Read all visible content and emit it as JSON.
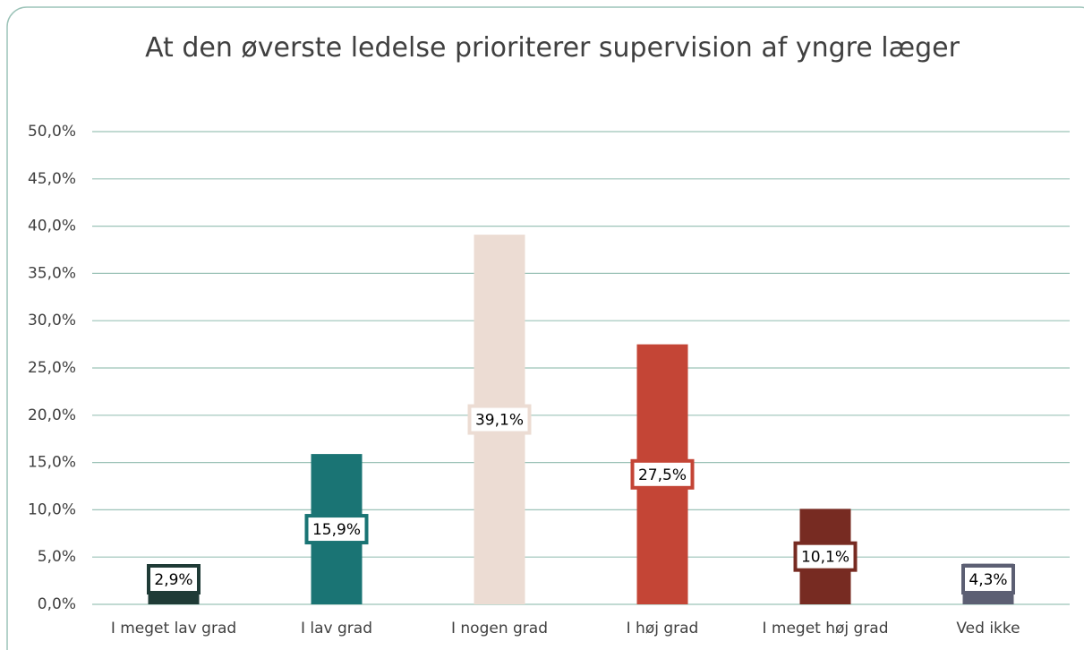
{
  "chart_data": {
    "type": "bar",
    "title": "At den øverste ledelse prioriterer supervision af yngre læger",
    "categories": [
      "I meget lav grad",
      "I lav grad",
      "I nogen grad",
      "I høj grad",
      "I meget høj grad",
      "Ved ikke"
    ],
    "values": [
      2.9,
      15.9,
      39.1,
      27.5,
      10.1,
      4.3
    ],
    "value_labels": [
      "2,9%",
      "15,9%",
      "39,1%",
      "27,5%",
      "10,1%",
      "4,3%"
    ],
    "colors": [
      "#1f3b36",
      "#1a7474",
      "#ecdcd3",
      "#c44536",
      "#772b22",
      "#5c5f73"
    ],
    "ylim": [
      0,
      50
    ],
    "yticks": [
      {
        "value": 0,
        "label": "0,0%"
      },
      {
        "value": 5,
        "label": "5,0%"
      },
      {
        "value": 10,
        "label": "10,0%"
      },
      {
        "value": 15,
        "label": "15,0%"
      },
      {
        "value": 20,
        "label": "20,0%"
      },
      {
        "value": 25,
        "label": "25,0%"
      },
      {
        "value": 30,
        "label": "30,0%"
      },
      {
        "value": 35,
        "label": "35,0%"
      },
      {
        "value": 40,
        "label": "40,0%"
      },
      {
        "value": 45,
        "label": "45,0%"
      },
      {
        "value": 50,
        "label": "50,0%"
      }
    ],
    "grid": true
  }
}
